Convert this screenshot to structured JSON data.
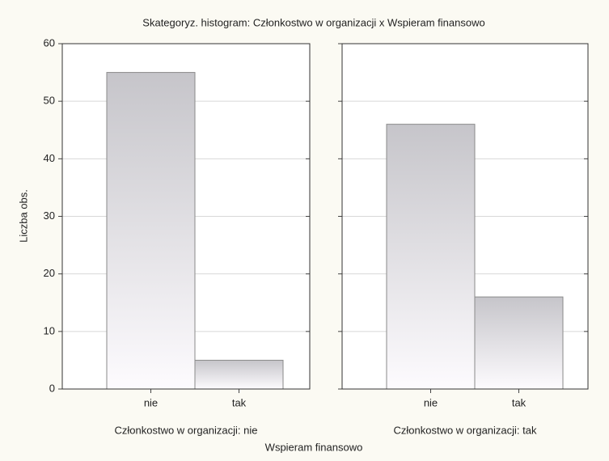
{
  "title": "Skategoryz. histogram: Członkostwo w organizacji x Wspieram finansowo",
  "ylabel": "Liczba obs.",
  "xlabel": "Wspieram finansowo",
  "chart_data": [
    {
      "type": "bar",
      "subtitle": "Członkostwo w organizacji: nie",
      "categories": [
        "nie",
        "tak"
      ],
      "values": [
        55,
        5
      ],
      "ylim": [
        0,
        60
      ],
      "yticks": [
        0,
        10,
        20,
        30,
        40,
        50,
        60
      ],
      "grid": true
    },
    {
      "type": "bar",
      "subtitle": "Członkostwo w organizacji: tak",
      "categories": [
        "nie",
        "tak"
      ],
      "values": [
        46,
        16
      ],
      "ylim": [
        0,
        60
      ],
      "yticks": [
        0,
        10,
        20,
        30,
        40,
        50,
        60
      ],
      "grid": true
    }
  ]
}
